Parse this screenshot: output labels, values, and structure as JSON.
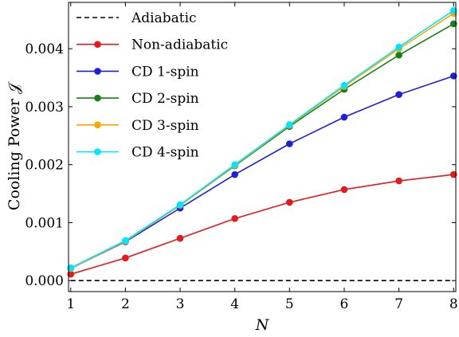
{
  "chart_data": {
    "type": "line",
    "title": "",
    "xlabel": "N",
    "ylabel": "Cooling Power 𝒥",
    "x": [
      1,
      2,
      3,
      4,
      5,
      6,
      7,
      8
    ],
    "xlim": [
      0.96,
      8.04
    ],
    "ylim": [
      -0.00019,
      0.0048
    ],
    "xticks": [
      "1",
      "2",
      "3",
      "4",
      "5",
      "6",
      "7",
      "8"
    ],
    "yticks": [
      "0.000",
      "0.001",
      "0.002",
      "0.003",
      "0.004"
    ],
    "ytick_values": [
      0,
      0.001,
      0.002,
      0.003,
      0.004
    ],
    "grid": false,
    "legend_position": "top-left",
    "series": [
      {
        "name": "Adiabatic",
        "color": "#000000",
        "style": "dashed",
        "markers": false,
        "values": [
          0,
          0,
          0,
          0,
          0,
          0,
          0,
          0
        ]
      },
      {
        "name": "Non-adiabatic",
        "color": "#e41a1c",
        "style": "solid",
        "markers": true,
        "values": [
          0.00011,
          0.00039,
          0.00073,
          0.00107,
          0.00135,
          0.00157,
          0.00172,
          0.00183
        ]
      },
      {
        "name": "CD 1-spin",
        "color": "#1f1fd6",
        "style": "solid",
        "markers": true,
        "values": [
          0.00021,
          0.00067,
          0.00125,
          0.00183,
          0.00236,
          0.00282,
          0.00321,
          0.00353
        ]
      },
      {
        "name": "CD 2-spin",
        "color": "#1a7f1a",
        "style": "solid",
        "markers": true,
        "values": [
          0.00021,
          0.00068,
          0.0013,
          0.00198,
          0.00266,
          0.0033,
          0.00389,
          0.00443
        ]
      },
      {
        "name": "CD 3-spin",
        "color": "#ffa500",
        "style": "solid",
        "markers": true,
        "values": [
          0.00021,
          0.00068,
          0.0013,
          0.00199,
          0.00268,
          0.00335,
          0.004,
          0.00461
        ]
      },
      {
        "name": "CD 4-spin",
        "color": "#00e5ff",
        "style": "solid",
        "markers": true,
        "values": [
          0.00022,
          0.00069,
          0.00131,
          0.002,
          0.00269,
          0.00337,
          0.00403,
          0.00466
        ]
      }
    ]
  }
}
